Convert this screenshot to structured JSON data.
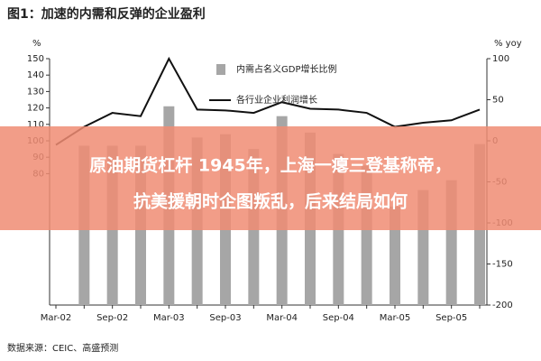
{
  "chart_data": {
    "type": "bar_line",
    "title": "图1：加速的内需和反弹的企业盈利",
    "ylabel": "%",
    "y2label": "% yoy",
    "categories": [
      "Mar-02",
      null,
      "Sep-02",
      null,
      "Mar-03",
      null,
      "Sep-03",
      null,
      "Mar-04",
      null,
      "Sep-04",
      null,
      "Mar-05",
      null,
      "Sep-05",
      null
    ],
    "series": [
      {
        "name": "内需占名义GDP增长比例",
        "type": "bar",
        "color": "#a6a6a6",
        "values": [
          null,
          97,
          97,
          97,
          121,
          102,
          104,
          95,
          115,
          105,
          92,
          85,
          60,
          70,
          76,
          98
        ]
      },
      {
        "name": "各行业企业利润增长",
        "type": "line",
        "color": "#111111",
        "axis": "y2",
        "values": [
          -5,
          17,
          34,
          30,
          100,
          38,
          37,
          34,
          47,
          39,
          38,
          34,
          17,
          22,
          25,
          38
        ]
      }
    ],
    "ylim": [
      0,
      150
    ],
    "yticks": [
      80,
      90,
      100,
      110,
      120,
      130,
      140,
      150
    ],
    "y2lim": [
      -200,
      100
    ],
    "y2ticks": [
      -200,
      -150,
      -100,
      -50,
      0,
      50,
      100
    ],
    "source": "数据来源：CEIC、高盛预测"
  },
  "banner": [
    "原油期货杠杆 1945年，上海一瘪三登基称帝，",
    "抗美援朝时企图叛乱，后来结局如何"
  ]
}
